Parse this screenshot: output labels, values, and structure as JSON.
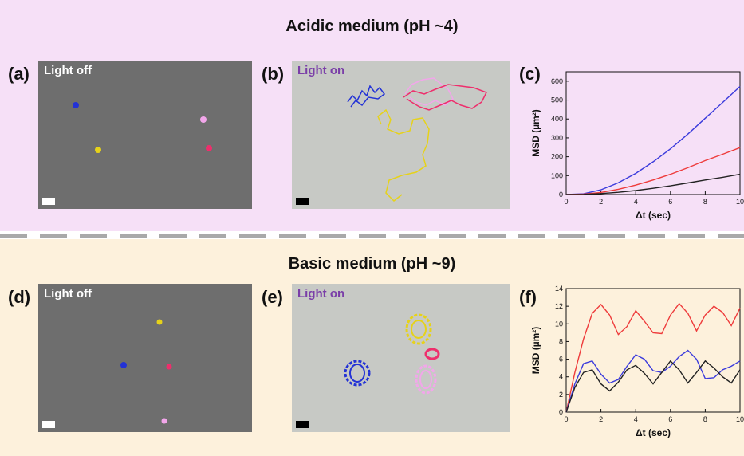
{
  "sections": {
    "top_title": "Acidic medium (pH ~4)",
    "bottom_title": "Basic medium (pH ~9)"
  },
  "panels": {
    "a": {
      "label": "(a)",
      "text": "Light off"
    },
    "b": {
      "label": "(b)",
      "text": "Light on"
    },
    "c": {
      "label": "(c)"
    },
    "d": {
      "label": "(d)",
      "text": "Light off"
    },
    "e": {
      "label": "(e)",
      "text": "Light on"
    },
    "f": {
      "label": "(f)"
    }
  },
  "track_colors": {
    "blue": "#2332d6",
    "yellow": "#e6d21a",
    "pink": "#f2a6ea",
    "red": "#ee2e6c"
  },
  "chart_data": [
    {
      "panel": "c",
      "type": "line",
      "xlabel": "Δt (sec)",
      "ylabel": "MSD (µm²)",
      "xlim": [
        0,
        10
      ],
      "ylim": [
        0,
        650
      ],
      "xticks": [
        "0",
        "2",
        "4",
        "6",
        "8",
        "10"
      ],
      "yticks": [
        "0",
        "100",
        "200",
        "300",
        "400",
        "500",
        "600"
      ],
      "series": [
        {
          "color": "#3b3bdc",
          "x": [
            0,
            1,
            2,
            3,
            4,
            5,
            6,
            7,
            8,
            9,
            10
          ],
          "y": [
            0,
            4,
            25,
            62,
            112,
            173,
            242,
            320,
            404,
            487,
            572
          ]
        },
        {
          "color": "#ee3b3b",
          "x": [
            0,
            1,
            2,
            3,
            4,
            5,
            6,
            7,
            8,
            9,
            10
          ],
          "y": [
            0,
            2,
            11,
            28,
            50,
            77,
            107,
            142,
            180,
            213,
            248
          ]
        },
        {
          "color": "#222222",
          "x": [
            0,
            1,
            2,
            3,
            4,
            5,
            6,
            7,
            8,
            9,
            10
          ],
          "y": [
            0,
            1,
            5,
            12,
            21,
            33,
            46,
            61,
            77,
            91,
            107
          ]
        }
      ]
    },
    {
      "panel": "f",
      "type": "line",
      "xlabel": "Δt (sec)",
      "ylabel": "MSD (µm²)",
      "xlim": [
        0,
        10
      ],
      "ylim": [
        0,
        14
      ],
      "xticks": [
        "0",
        "2",
        "4",
        "6",
        "8",
        "10"
      ],
      "yticks": [
        "0",
        "2",
        "4",
        "6",
        "8",
        "10",
        "12",
        "14"
      ],
      "series": [
        {
          "color": "#ee3b3b",
          "x": [
            0,
            0.5,
            1,
            1.5,
            2,
            2.5,
            3,
            3.5,
            4,
            4.5,
            5,
            5.5,
            6,
            6.5,
            7,
            7.5,
            8,
            8.5,
            9,
            9.5,
            10
          ],
          "y": [
            0,
            4.5,
            8.3,
            11.2,
            12.2,
            11.0,
            8.8,
            9.7,
            11.5,
            10.3,
            9.0,
            8.9,
            11.0,
            12.3,
            11.2,
            9.2,
            11.0,
            12.0,
            11.3,
            9.8,
            11.8
          ]
        },
        {
          "color": "#3b3bdc",
          "x": [
            0,
            0.5,
            1,
            1.5,
            2,
            2.5,
            3,
            3.5,
            4,
            4.5,
            5,
            5.5,
            6,
            6.5,
            7,
            7.5,
            8,
            8.5,
            9,
            9.5,
            10
          ],
          "y": [
            0,
            3.2,
            5.5,
            5.8,
            4.3,
            3.3,
            3.7,
            5.2,
            6.5,
            6.0,
            4.7,
            4.5,
            5.2,
            6.3,
            7.0,
            6.0,
            3.8,
            3.9,
            4.8,
            5.2,
            5.8
          ]
        },
        {
          "color": "#222222",
          "x": [
            0,
            0.5,
            1,
            1.5,
            2,
            2.5,
            3,
            3.5,
            4,
            4.5,
            5,
            5.5,
            6,
            6.5,
            7,
            7.5,
            8,
            8.5,
            9,
            9.5,
            10
          ],
          "y": [
            0,
            2.8,
            4.5,
            4.8,
            3.2,
            2.4,
            3.4,
            4.8,
            5.3,
            4.4,
            3.2,
            4.5,
            5.8,
            4.8,
            3.3,
            4.5,
            5.8,
            5.0,
            4.0,
            3.3,
            4.8
          ]
        }
      ]
    }
  ]
}
